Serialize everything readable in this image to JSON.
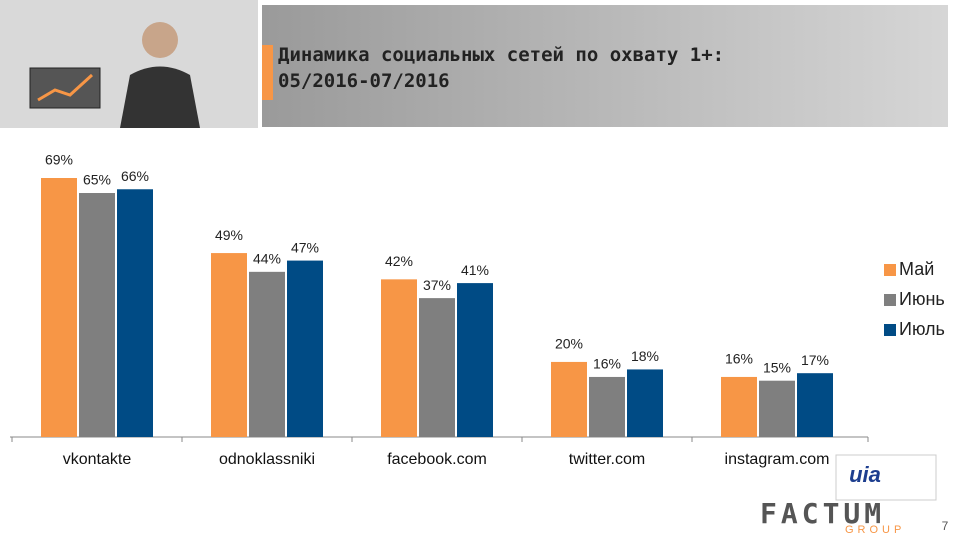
{
  "chart_data": {
    "type": "bar",
    "title": "Динамика социальных сетей по охвату 1+: 05/2016-07/2016",
    "categories": [
      "vkontakte",
      "odnoklassniki",
      "facebook.com",
      "twitter.com",
      "instagram.com"
    ],
    "series": [
      {
        "name": "Май",
        "color": "#f79646",
        "values": [
          69,
          49,
          42,
          20,
          16
        ],
        "value_labels": [
          "69%",
          "49%",
          "42%",
          "20%",
          "16%"
        ]
      },
      {
        "name": "Июнь",
        "color": "#7f7f7f",
        "values": [
          65,
          44,
          37,
          16,
          15
        ],
        "value_labels": [
          "65%",
          "44%",
          "37%",
          "16%",
          "15%"
        ]
      },
      {
        "name": "Июль",
        "color": "#004b85",
        "values": [
          66,
          47,
          41,
          18,
          17
        ],
        "value_labels": [
          "66%",
          "47%",
          "41%",
          "18%",
          "17%"
        ]
      }
    ],
    "legend": "right"
  },
  "footer": {
    "logo": "FACTUM",
    "logo_sub": "GROUP",
    "partner": "uia",
    "page_number": "7"
  }
}
